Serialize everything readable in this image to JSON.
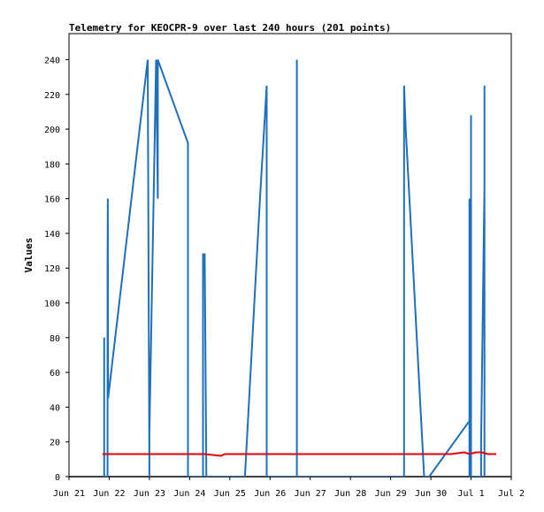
{
  "chart_data": {
    "type": "line",
    "title": "Telemetry for KEOCPR-9 over last 240 hours (201 points)",
    "xlabel": "",
    "ylabel": "Values",
    "xlim": [
      "2023-06-21",
      "2023-07-02"
    ],
    "ylim": [
      0,
      255
    ],
    "x_ticks": [
      {
        "date": "2023-06-21",
        "label": "Jun 21"
      },
      {
        "date": "2023-06-22",
        "label": "Jun 22"
      },
      {
        "date": "2023-06-23",
        "label": "Jun 23"
      },
      {
        "date": "2023-06-24",
        "label": "Jun 24"
      },
      {
        "date": "2023-06-25",
        "label": "Jun 25"
      },
      {
        "date": "2023-06-26",
        "label": "Jun 26"
      },
      {
        "date": "2023-06-27",
        "label": "Jun 27"
      },
      {
        "date": "2023-06-28",
        "label": "Jun 28"
      },
      {
        "date": "2023-06-29",
        "label": "Jun 29"
      },
      {
        "date": "2023-06-30",
        "label": "Jun 30"
      },
      {
        "date": "2023-07-01",
        "label": "Jul 1"
      },
      {
        "date": "2023-07-02",
        "label": "Jul 2"
      }
    ],
    "y_ticks": [
      0,
      20,
      40,
      60,
      80,
      100,
      120,
      140,
      160,
      180,
      200,
      220,
      240
    ],
    "grid": false,
    "legend": "none",
    "series": [
      {
        "color": "#1f6fbf",
        "points": [
          [
            "2023-06-21 21:00",
            0
          ],
          [
            "2023-06-21 21:00",
            80
          ],
          [
            "2023-06-21 21:00",
            0
          ],
          [
            "2023-06-21 23:00",
            0
          ],
          [
            "2023-06-21 23:00",
            120
          ],
          [
            "2023-06-21 23:10",
            160
          ],
          [
            "2023-06-21 23:20",
            45
          ],
          [
            "2023-06-22 23:00",
            240
          ],
          [
            "2023-06-23 00:00",
            0
          ],
          [
            "2023-06-23 00:00",
            25
          ],
          [
            "2023-06-23 04:00",
            240
          ],
          [
            "2023-06-23 05:00",
            160
          ],
          [
            "2023-06-23 05:00",
            240
          ],
          [
            "2023-06-23 23:00",
            192
          ],
          [
            "2023-06-23 23:00",
            0
          ],
          [
            "2023-06-24 08:00",
            0
          ],
          [
            "2023-06-24 08:00",
            128
          ],
          [
            "2023-06-24 09:00",
            128
          ],
          [
            "2023-06-24 10:00",
            0
          ],
          [
            "2023-06-25 09:00",
            0
          ],
          [
            "2023-06-25 18:00",
            160
          ],
          [
            "2023-06-25 22:00",
            225
          ],
          [
            "2023-06-25 22:00",
            0
          ],
          [
            "2023-06-26 16:00",
            0
          ],
          [
            "2023-06-26 16:00",
            240
          ],
          [
            "2023-06-26 16:00",
            190
          ],
          [
            "2023-06-26 16:00",
            0
          ],
          [
            "2023-06-29 08:00",
            0
          ],
          [
            "2023-06-29 08:00",
            225
          ],
          [
            "2023-06-29 09:00",
            200
          ],
          [
            "2023-06-29 20:00",
            0
          ],
          [
            "2023-06-29 23:00",
            0
          ],
          [
            "2023-06-30 23:00",
            32
          ],
          [
            "2023-06-30 23:00",
            0
          ],
          [
            "2023-06-30 23:00",
            160
          ],
          [
            "2023-07-01 00:00",
            0
          ],
          [
            "2023-07-01 00:00",
            208
          ],
          [
            "2023-07-01 00:00",
            0
          ],
          [
            "2023-07-01 06:00",
            0
          ],
          [
            "2023-07-01 06:00",
            20
          ],
          [
            "2023-07-01 08:00",
            168
          ],
          [
            "2023-07-01 08:00",
            225
          ],
          [
            "2023-07-01 08:00",
            0
          ]
        ]
      },
      {
        "color": "#e8000b",
        "points": [
          [
            "2023-06-21 20:00",
            13
          ],
          [
            "2023-06-24 09:00",
            13
          ],
          [
            "2023-06-24 18:00",
            12
          ],
          [
            "2023-06-24 19:00",
            12
          ],
          [
            "2023-06-24 21:00",
            13
          ],
          [
            "2023-06-30 12:00",
            13
          ],
          [
            "2023-06-30 20:00",
            14
          ],
          [
            "2023-06-30 23:00",
            13
          ],
          [
            "2023-07-01 03:00",
            14
          ],
          [
            "2023-07-01 06:00",
            14
          ],
          [
            "2023-07-01 10:00",
            13
          ],
          [
            "2023-07-01 15:00",
            13
          ]
        ]
      }
    ]
  }
}
